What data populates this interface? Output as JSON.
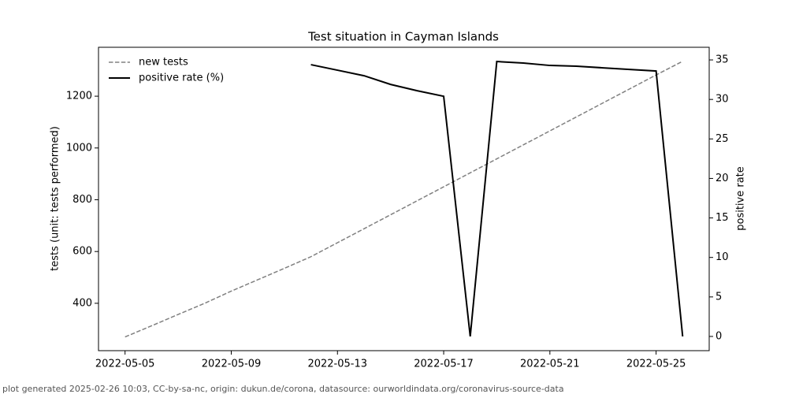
{
  "chart_data": {
    "type": "line",
    "title": "Test situation in Cayman Islands",
    "ylabel": "tests (unit: tests performed)",
    "y2label": "positive rate",
    "footer": "plot generated 2025-02-26 10:03, CC-by-sa-nc, origin: dukun.de/corona, datasource: ourworldindata.org/coronavirus-source-data",
    "x": [
      "2022-05-05",
      "2022-05-06",
      "2022-05-07",
      "2022-05-08",
      "2022-05-09",
      "2022-05-10",
      "2022-05-11",
      "2022-05-12",
      "2022-05-13",
      "2022-05-14",
      "2022-05-15",
      "2022-05-16",
      "2022-05-17",
      "2022-05-18",
      "2022-05-19",
      "2022-05-20",
      "2022-05-21",
      "2022-05-22",
      "2022-05-23",
      "2022-05-24",
      "2022-05-25",
      "2022-05-26"
    ],
    "series": [
      {
        "name": "new tests",
        "color": "#808080",
        "dash": true,
        "values": [
          270,
          313,
          357,
          400,
          447,
          491,
          535,
          580,
          634,
          688,
          742,
          796,
          850,
          904,
          958,
          1012,
          1066,
          1120,
          1174,
          1228,
          1282,
          1335
        ]
      },
      {
        "name": "positive rate (%)",
        "color": "#000000",
        "axis": "y2",
        "values": [
          null,
          null,
          null,
          null,
          null,
          null,
          null,
          34.4,
          33.7,
          33.0,
          31.9,
          31.1,
          30.4,
          0,
          34.8,
          34.6,
          34.3,
          34.2,
          34.0,
          33.8,
          33.6,
          0
        ]
      }
    ],
    "xlim": [
      "2022-05-04",
      "2022-05-27"
    ],
    "xticks": [
      "2022-05-05",
      "2022-05-09",
      "2022-05-13",
      "2022-05-17",
      "2022-05-21",
      "2022-05-25"
    ],
    "ylim": [
      217,
      1389
    ],
    "yticks": [
      400,
      600,
      800,
      1000,
      1200
    ],
    "y2lim": [
      -1.8,
      36.6
    ],
    "y2ticks": [
      0,
      5,
      10,
      15,
      20,
      25,
      30,
      35
    ],
    "legend": "upper left"
  }
}
